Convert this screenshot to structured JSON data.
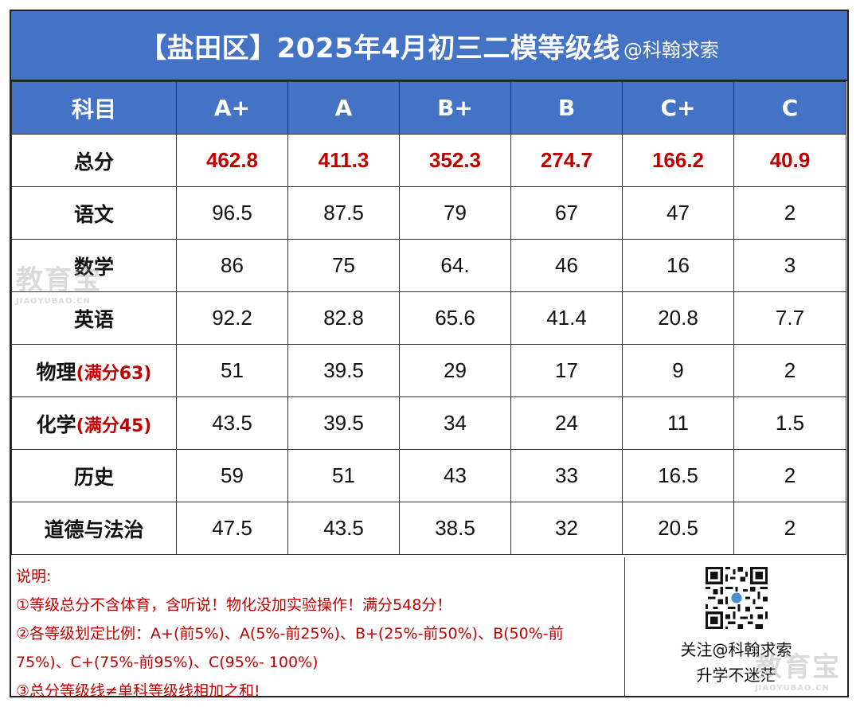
{
  "title": {
    "main": "【盐田区】2025年4月初三二模等级线",
    "sub": "@科翰求索"
  },
  "header": [
    "科目",
    "A+",
    "A",
    "B+",
    "B",
    "C+",
    "C"
  ],
  "rows": [
    {
      "subject": "总分",
      "full": "",
      "values": [
        "462.8",
        "411.3",
        "352.3",
        "274.7",
        "166.2",
        "40.9"
      ]
    },
    {
      "subject": "语文",
      "full": "",
      "values": [
        "96.5",
        "87.5",
        "79",
        "67",
        "47",
        "2"
      ]
    },
    {
      "subject": "数学",
      "full": "",
      "values": [
        "86",
        "75",
        "64.",
        "46",
        "16",
        "3"
      ]
    },
    {
      "subject": "英语",
      "full": "",
      "values": [
        "92.2",
        "82.8",
        "65.6",
        "41.4",
        "20.8",
        "7.7"
      ]
    },
    {
      "subject": "物理",
      "full": "(满分63)",
      "values": [
        "51",
        "39.5",
        "29",
        "17",
        "9",
        "2"
      ]
    },
    {
      "subject": "化学",
      "full": "(满分45)",
      "values": [
        "43.5",
        "39.5",
        "34",
        "24",
        "11",
        "1.5"
      ]
    },
    {
      "subject": "历史",
      "full": "",
      "values": [
        "59",
        "51",
        "43",
        "33",
        "16.5",
        "2"
      ]
    },
    {
      "subject": "道德与法治",
      "full": "",
      "values": [
        "47.5",
        "43.5",
        "38.5",
        "32",
        "20.5",
        "2"
      ]
    }
  ],
  "notes": {
    "heading": "说明:",
    "line1": "①等级总分不含体育，含听说！物化没加实验操作！满分548分！",
    "line2a": "②各等级划定比例：A+(前5%)、A(5%-前25%)、B+(25%-前50%)、B(50%-前",
    "line2b": "75%)、C+(75%-前95%)、C(95%- 100%)",
    "line3": "③总分等级线≠单科等级线相加之和!"
  },
  "qr": {
    "icon": "qr-code-icon",
    "caption1": "关注@科翰求索",
    "caption2": "升学不迷茫"
  },
  "watermark": {
    "main": "教育宝",
    "sub": "JIAOYUBAO.CN"
  },
  "colors": {
    "header_bg": "#4472c4",
    "accent_red": "#c00000"
  }
}
